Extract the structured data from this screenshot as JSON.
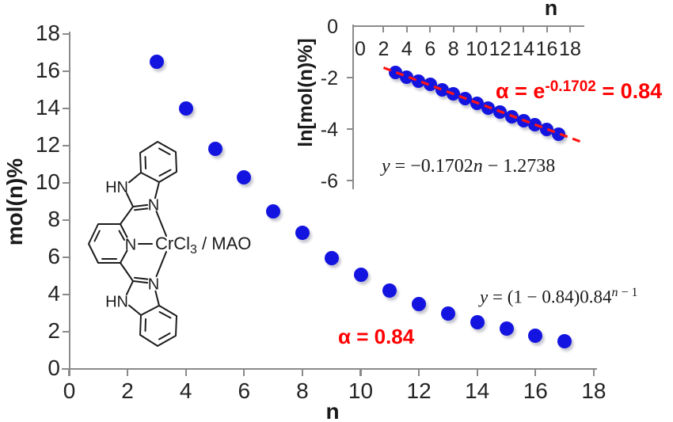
{
  "figure": {
    "colors": {
      "dot_blue": "#1414e0",
      "axis_gray": "#8a8a8a",
      "text_dark": "#242424",
      "annotation_red": "#ff0000",
      "chem_black": "#1c1c1c"
    }
  },
  "chart_data": [
    {
      "id": "main",
      "type": "scatter",
      "title": "",
      "xlabel": "n",
      "ylabel": "mol(n)%",
      "xlim": [
        0,
        18
      ],
      "ylim": [
        0,
        18
      ],
      "grid": false,
      "legend": "none",
      "xticks": [
        0,
        2,
        4,
        6,
        8,
        10,
        12,
        14,
        16,
        18
      ],
      "yticks": [
        0,
        2,
        4,
        6,
        8,
        10,
        12,
        14,
        16,
        18
      ],
      "x": [
        3,
        4,
        5,
        6,
        7,
        8,
        9,
        10,
        11,
        12,
        13,
        14,
        15,
        16,
        17
      ],
      "y": [
        16.5,
        14.0,
        11.85,
        10.3,
        8.45,
        7.3,
        5.95,
        5.05,
        4.2,
        3.5,
        3.0,
        2.5,
        2.15,
        1.8,
        1.5
      ]
    },
    {
      "id": "inset",
      "type": "scatter",
      "title": "n",
      "xlabel": "",
      "ylabel": "ln[mol(n)%]",
      "xlim": [
        0,
        18
      ],
      "ylim": [
        -6,
        0
      ],
      "grid": false,
      "legend": "none",
      "xticks": [
        0,
        2,
        4,
        6,
        8,
        10,
        12,
        14,
        16,
        18
      ],
      "yticks": [
        0,
        -2,
        -4,
        -6
      ],
      "x": [
        3,
        4,
        5,
        6,
        7,
        8,
        9,
        10,
        11,
        12,
        13,
        14,
        15,
        16,
        17
      ],
      "y": [
        -1.8,
        -1.97,
        -2.13,
        -2.27,
        -2.47,
        -2.62,
        -2.82,
        -2.99,
        -3.17,
        -3.35,
        -3.51,
        -3.69,
        -3.84,
        -4.02,
        -4.2
      ],
      "trendline": {
        "slope": -0.1702,
        "intercept": -1.2738,
        "x_start": 2,
        "x_end": 19,
        "style": "dashed",
        "color": "#ff1414",
        "dash": [
          10,
          7
        ],
        "width": 3.2
      }
    }
  ],
  "annotations": {
    "alpha_inset": {
      "base1": "α = e",
      "sup": "-0.1702",
      "base2": " = 0.84"
    },
    "eq_inset": {
      "p1": "y",
      "p2": " = −0.1702",
      "p3": "n",
      "p4": " − 1.2738"
    },
    "alpha_main": {
      "text": "α = 0.84"
    },
    "eq_main": {
      "m1": "y",
      "m2": " = (1 − 0.84)0.84",
      "s1": "n",
      "s2": " − 1"
    }
  },
  "chem": {
    "name": "bis(benzimidazolyl)pyridine chromium trichloride catalyst",
    "labels": {
      "hn_top": "HN",
      "n_imid_top": "N",
      "n_pyridine": "N",
      "n_imid_bottom": "N",
      "hn_bottom": "HN",
      "cr_main": "CrCl",
      "cr_sub": "3",
      "cr_rest": " / MAO"
    }
  }
}
